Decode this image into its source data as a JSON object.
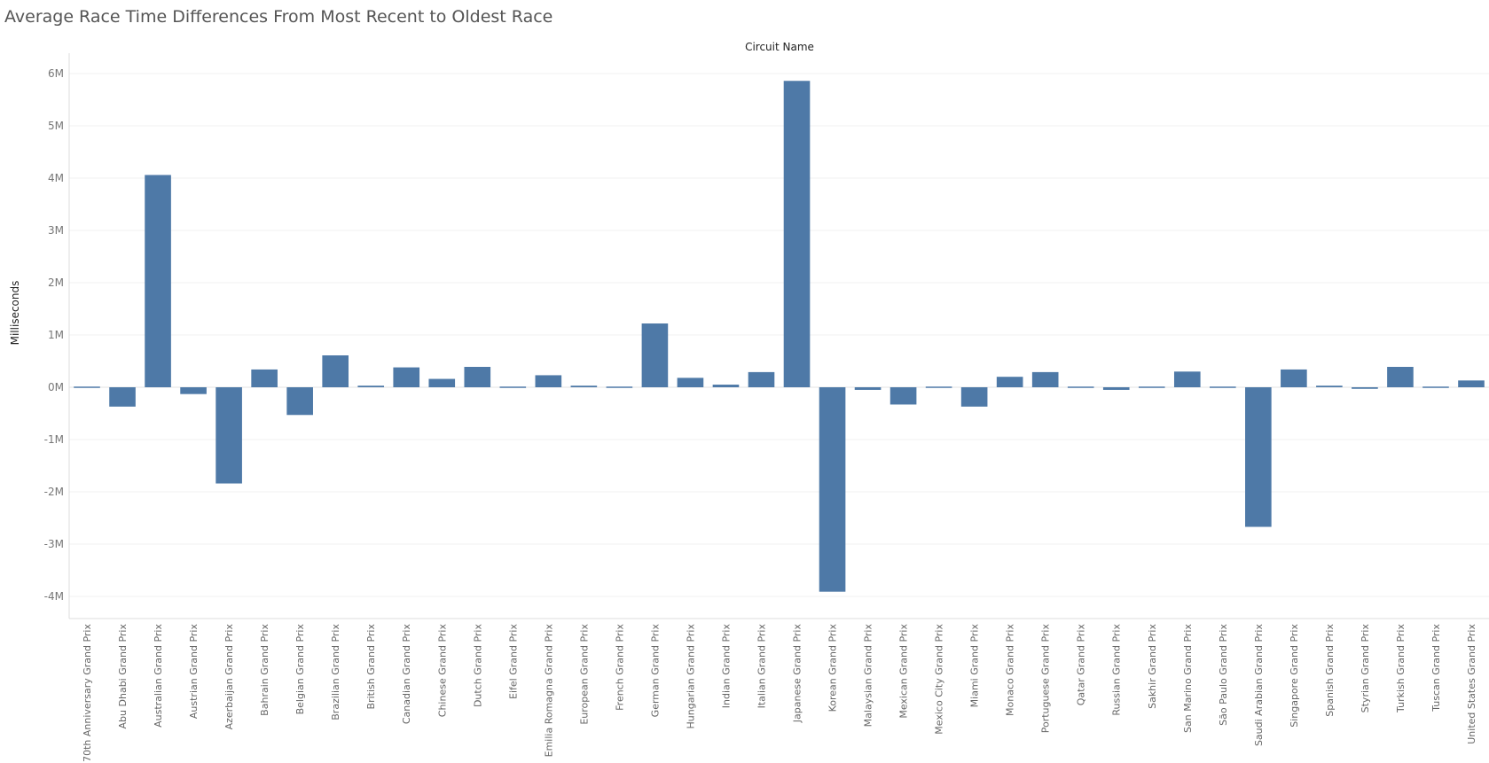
{
  "chart_data": {
    "type": "bar",
    "title": "Average Race Time Differences From Most Recent to Oldest Race",
    "xlabel": "Circuit Name",
    "ylabel": "Milliseconds",
    "ylim": [
      -4200000,
      6200000
    ],
    "ticks": [
      6000000,
      5000000,
      4000000,
      3000000,
      2000000,
      1000000,
      0,
      -1000000,
      -2000000,
      -3000000,
      -4000000
    ],
    "tick_labels": [
      "6M",
      "5M",
      "4M",
      "3M",
      "2M",
      "1M",
      "0M",
      "-1M",
      "-2M",
      "-3M",
      "-4M"
    ],
    "grid": true,
    "bar_color": "#4e79a7",
    "categories": [
      "70th Anniversary Grand Prix",
      "Abu Dhabi Grand Prix",
      "Australian Grand Prix",
      "Austrian Grand Prix",
      "Azerbaijan Grand Prix",
      "Bahrain Grand Prix",
      "Belgian Grand Prix",
      "Brazilian Grand Prix",
      "British Grand Prix",
      "Canadian Grand Prix",
      "Chinese Grand Prix",
      "Dutch Grand Prix",
      "Eifel Grand Prix",
      "Emilia Romagna Grand Prix",
      "European Grand Prix",
      "French Grand Prix",
      "German Grand Prix",
      "Hungarian Grand Prix",
      "Indian Grand Prix",
      "Italian Grand Prix",
      "Japanese Grand Prix",
      "Korean Grand Prix",
      "Malaysian Grand Prix",
      "Mexican Grand Prix",
      "Mexico City Grand Prix",
      "Miami Grand Prix",
      "Monaco Grand Prix",
      "Portuguese Grand Prix",
      "Qatar Grand Prix",
      "Russian Grand Prix",
      "Sakhir Grand Prix",
      "San Marino Grand Prix",
      "São Paulo Grand Prix",
      "Saudi Arabian Grand Prix",
      "Singapore Grand Prix",
      "Spanish Grand Prix",
      "Styrian Grand Prix",
      "Turkish Grand Prix",
      "Tuscan Grand Prix",
      "United States Grand Prix"
    ],
    "values": [
      -15000,
      -370000,
      4060000,
      -130000,
      -1840000,
      340000,
      -530000,
      610000,
      30000,
      380000,
      160000,
      390000,
      -15000,
      230000,
      30000,
      -15000,
      1220000,
      180000,
      50000,
      290000,
      5860000,
      -3910000,
      -50000,
      -330000,
      -15000,
      -370000,
      200000,
      290000,
      -15000,
      -50000,
      -15000,
      300000,
      -15000,
      -2670000,
      340000,
      30000,
      -30000,
      390000,
      -15000,
      130000
    ]
  }
}
